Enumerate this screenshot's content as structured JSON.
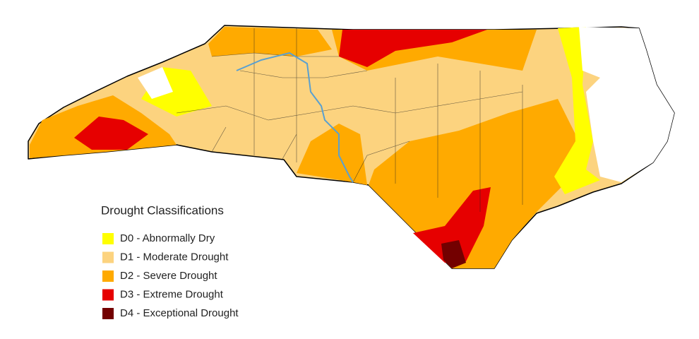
{
  "legend": {
    "title": "Drought Classifications",
    "items": [
      {
        "label": "D0 - Abnormally Dry",
        "color": "#ffff00"
      },
      {
        "label": "D1 - Moderate Drought",
        "color": "#fcd37f"
      },
      {
        "label": "D2 - Severe Drought",
        "color": "#ffaa00"
      },
      {
        "label": "D3 - Extreme Drought",
        "color": "#e60000"
      },
      {
        "label": "D4 - Exceptional Drought",
        "color": "#730000"
      }
    ]
  }
}
